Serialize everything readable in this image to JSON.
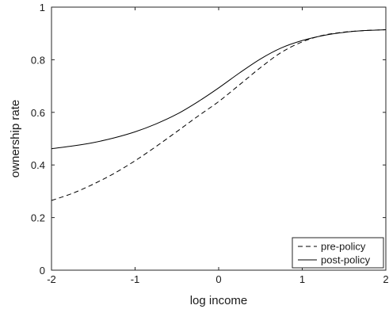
{
  "chart_data": {
    "type": "line",
    "xlabel": "log income",
    "ylabel": "ownership rate",
    "xlim": [
      -2,
      2
    ],
    "ylim": [
      0,
      1
    ],
    "x_ticks": [
      -2,
      -1,
      0,
      1,
      2
    ],
    "y_ticks": [
      0,
      0.2,
      0.4,
      0.6,
      0.8,
      1
    ],
    "x_tick_labels": [
      "-2",
      "-1",
      "0",
      "1",
      "2"
    ],
    "y_tick_labels": [
      "0",
      "0.2",
      "0.4",
      "0.6",
      "0.8",
      "1"
    ],
    "grid": false,
    "legend_position": "bottom-right",
    "series": [
      {
        "name": "pre-policy",
        "style": "dashed",
        "color": "#000000",
        "x": [
          -2,
          -1.75,
          -1.5,
          -1.25,
          -1,
          -0.75,
          -0.5,
          -0.25,
          0,
          0.25,
          0.5,
          0.75,
          1,
          1.25,
          1.5,
          1.75,
          2
        ],
        "y": [
          0.265,
          0.292,
          0.327,
          0.368,
          0.416,
          0.47,
          0.527,
          0.585,
          0.641,
          0.705,
          0.77,
          0.828,
          0.868,
          0.893,
          0.905,
          0.911,
          0.914
        ]
      },
      {
        "name": "post-policy",
        "style": "solid",
        "color": "#000000",
        "x": [
          -2,
          -1.75,
          -1.5,
          -1.25,
          -1,
          -0.75,
          -0.5,
          -0.25,
          0,
          0.25,
          0.5,
          0.75,
          1,
          1.25,
          1.5,
          1.75,
          2
        ],
        "y": [
          0.462,
          0.472,
          0.485,
          0.503,
          0.526,
          0.556,
          0.593,
          0.64,
          0.693,
          0.75,
          0.803,
          0.845,
          0.873,
          0.892,
          0.904,
          0.911,
          0.914
        ]
      }
    ]
  }
}
